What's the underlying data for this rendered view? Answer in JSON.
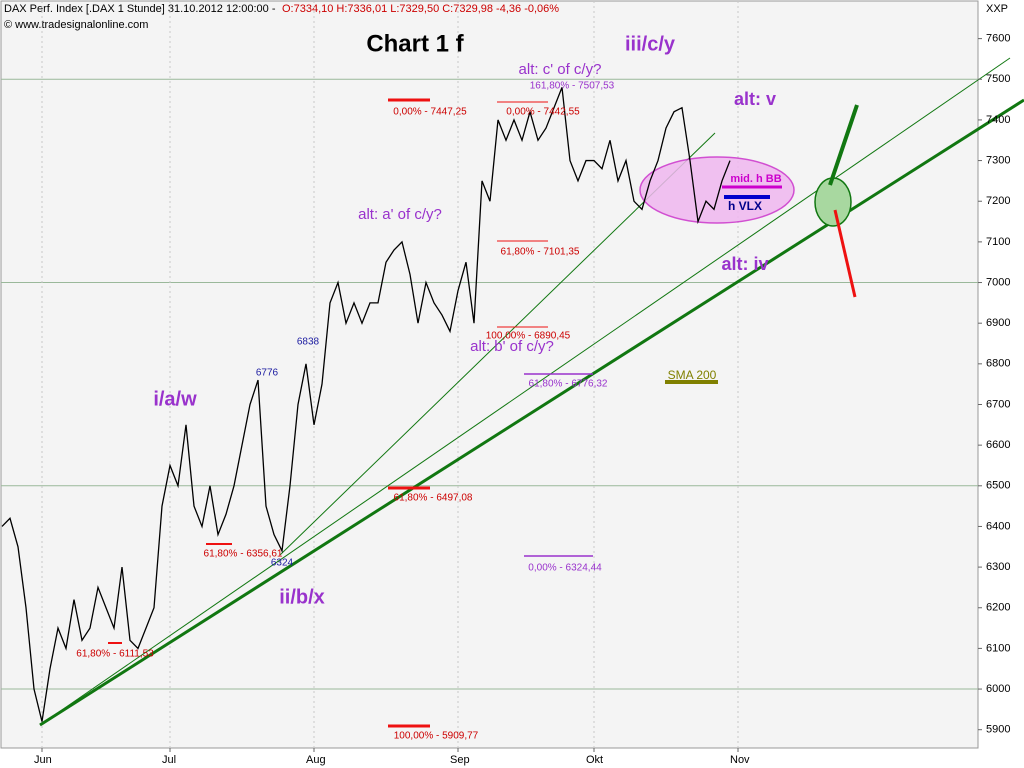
{
  "chart_data": {
    "type": "line",
    "header": "DAX Perf. Index [.DAX 1 Stunde] 31.10.2012 12:00:00 -",
    "header_quote": "O:7334,10 H:7336,01 L:7329,50 C:7329,98 -4,36 -0,06%",
    "source": "© www.tradesignalonline.com",
    "axis_unit": "XXP",
    "categories": [
      null,
      null,
      null,
      null,
      null,
      "Jun",
      null,
      null,
      null,
      null,
      null,
      null,
      null,
      null,
      null,
      null,
      null,
      null,
      null,
      null,
      null,
      "Jul",
      null,
      null,
      null,
      null,
      null,
      null,
      null,
      null,
      null,
      null,
      null,
      null,
      null,
      null,
      null,
      null,
      null,
      "Aug",
      null,
      null,
      null,
      null,
      null,
      null,
      null,
      null,
      null,
      null,
      null,
      null,
      null,
      null,
      null,
      null,
      null,
      "Sep",
      null,
      null,
      null,
      null,
      null,
      null,
      null,
      null,
      null,
      null,
      null,
      null,
      null,
      null,
      null,
      null,
      "Okt",
      null,
      null,
      null,
      null,
      null,
      null,
      null,
      null,
      null,
      null,
      null,
      null,
      null,
      null,
      null,
      null,
      null,
      "Nov",
      null,
      null,
      null,
      null,
      null,
      null,
      null,
      null,
      null,
      null,
      null,
      null,
      null,
      null,
      null,
      null,
      null,
      null,
      null,
      null,
      null,
      null,
      null,
      null,
      null,
      null,
      null,
      null,
      null
    ],
    "series": [
      {
        "name": "DAX Perf. Index",
        "color": "#000000",
        "values": [
          6400,
          6420,
          6350,
          6200,
          6000,
          5920,
          6050,
          6150,
          6100,
          6220,
          6120,
          6150,
          6250,
          6200,
          6150,
          6300,
          6120,
          6100,
          6150,
          6200,
          6450,
          6550,
          6500,
          6650,
          6450,
          6400,
          6500,
          6380,
          6430,
          6500,
          6600,
          6700,
          6760,
          6450,
          6380,
          6340,
          6500,
          6700,
          6800,
          6650,
          6750,
          6950,
          7000,
          6900,
          6950,
          6900,
          6950,
          6950,
          7050,
          7080,
          7100,
          7020,
          6900,
          7000,
          6950,
          6920,
          6880,
          6980,
          7050,
          6900,
          7250,
          7200,
          7400,
          7350,
          7400,
          7350,
          7420,
          7350,
          7380,
          7430,
          7480,
          7300,
          7250,
          7300,
          7300,
          7280,
          7350,
          7250,
          7300,
          7200,
          7180,
          7250,
          7300,
          7380,
          7420,
          7430,
          7300,
          7150,
          7200,
          7180,
          7250,
          7300,
          null,
          null,
          null,
          null,
          null,
          null,
          null,
          null,
          null,
          null,
          null,
          null,
          null,
          null,
          null,
          null,
          null,
          null,
          null,
          null,
          null,
          null,
          null,
          null,
          null,
          null,
          null,
          null,
          null,
          null
        ]
      }
    ],
    "ylim": [
      5855,
      7695
    ],
    "yticks": [
      5900,
      6000,
      6100,
      6200,
      6300,
      6400,
      6500,
      6600,
      6700,
      6800,
      6900,
      7000,
      7100,
      7200,
      7300,
      7400,
      7500,
      7600
    ],
    "grid_step": 500,
    "annotations": [
      "Chart 1 f",
      "iii/c/y",
      "alt: c' of c/y?",
      "alt: v",
      "alt: a' of c/y?",
      "alt: iv",
      "alt: b' of c/y?",
      "i/a/w",
      "ii/b/x",
      "SMA 200",
      "mid. h BB",
      "h VLX",
      "6776",
      "6838",
      "6324",
      "161,80% - 7507,53",
      "0,00% - 7447,25",
      "0,00% - 7442,55",
      "61,80% - 7101,35",
      "100,00% - 6890,45",
      "61,80% - 6776,32",
      "61,80% - 6497,08",
      "61,80% - 6356,61",
      "0,00% - 6324,44",
      "61,80% - 6111,53",
      "100,00% - 5909,77"
    ]
  }
}
